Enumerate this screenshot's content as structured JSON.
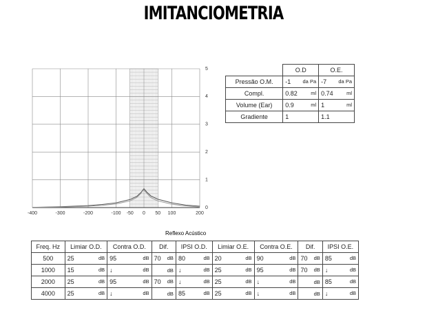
{
  "header": {
    "title": "IMITANCIOMETRIA"
  },
  "chart_data": {
    "type": "line",
    "x": [
      -400,
      -300,
      -200,
      -150,
      -100,
      -50,
      -25,
      -10,
      -5,
      0,
      10,
      25,
      50,
      100,
      150,
      200
    ],
    "series": [
      {
        "name": "O.D",
        "color": "#555555",
        "values": [
          0.01,
          0.03,
          0.07,
          0.11,
          0.17,
          0.29,
          0.41,
          0.55,
          0.62,
          0.68,
          0.56,
          0.42,
          0.3,
          0.17,
          0.09,
          0.05
        ]
      },
      {
        "name": "O.E.",
        "color": "#999999",
        "values": [
          0.01,
          0.02,
          0.05,
          0.08,
          0.13,
          0.24,
          0.37,
          0.52,
          0.6,
          0.63,
          0.52,
          0.36,
          0.24,
          0.12,
          0.06,
          0.02
        ]
      }
    ],
    "xlim": [
      -400,
      200
    ],
    "ylim": [
      0,
      5
    ],
    "xticks": [
      -400,
      -300,
      -200,
      -100,
      -50,
      0,
      50,
      100,
      200
    ],
    "yticks": [
      0,
      1,
      2,
      3,
      4,
      5
    ],
    "grid": true
  },
  "pressure_table": {
    "columns": [
      "O.D",
      "O.E."
    ],
    "rows": [
      {
        "label": "Pressão O.M.",
        "cells": [
          [
            "-1",
            "da Pa"
          ],
          [
            "-7",
            "da Pa"
          ]
        ]
      },
      {
        "label": "Compl.",
        "cells": [
          [
            "0.82",
            "ml"
          ],
          [
            "0.74",
            "ml"
          ]
        ]
      },
      {
        "label": "Volume (Ear)",
        "cells": [
          [
            "0.9",
            "ml"
          ],
          [
            "1",
            "ml"
          ]
        ]
      },
      {
        "label": "Gradiente",
        "cells": [
          [
            "1",
            null
          ],
          [
            "1.1",
            null
          ]
        ]
      }
    ]
  },
  "reflex_table": {
    "title": "Reflexo Acústico",
    "columns": [
      "Freq. Hz",
      "Limiar O.D.",
      "Contra O.D.",
      "Dif.",
      "IPSI O.D.",
      "Limiar O.E.",
      "Contra O.E.",
      "Dif.",
      "IPSI O.E."
    ],
    "rows": [
      {
        "freq": "500",
        "cells": [
          [
            "25",
            "dB"
          ],
          [
            "95",
            "dB"
          ],
          [
            "70",
            "dB"
          ],
          [
            "80",
            "dB"
          ],
          [
            "20",
            "dB"
          ],
          [
            "90",
            "dB"
          ],
          [
            "70",
            "dB"
          ],
          [
            "85",
            "dB"
          ]
        ]
      },
      {
        "freq": "1000",
        "cells": [
          [
            "15",
            "dB"
          ],
          [
            "↓",
            "dB"
          ],
          [
            null,
            "dB"
          ],
          [
            "↓",
            "dB"
          ],
          [
            "25",
            "dB"
          ],
          [
            "95",
            "dB"
          ],
          [
            "70",
            "dB"
          ],
          [
            "↓",
            "dB"
          ]
        ]
      },
      {
        "freq": "2000",
        "cells": [
          [
            "25",
            "dB"
          ],
          [
            "95",
            "dB"
          ],
          [
            "70",
            "dB"
          ],
          [
            "↓",
            "dB"
          ],
          [
            "25",
            "dB"
          ],
          [
            "↓",
            "dB"
          ],
          [
            null,
            "dB"
          ],
          [
            "85",
            "dB"
          ]
        ]
      },
      {
        "freq": "4000",
        "cells": [
          [
            "25",
            "dB"
          ],
          [
            "↓",
            "dB"
          ],
          [
            null,
            "dB"
          ],
          [
            "85",
            "dB"
          ],
          [
            "25",
            "dB"
          ],
          [
            "↓",
            "dB"
          ],
          [
            null,
            "dB"
          ],
          [
            "↓",
            "dB"
          ]
        ]
      }
    ]
  }
}
